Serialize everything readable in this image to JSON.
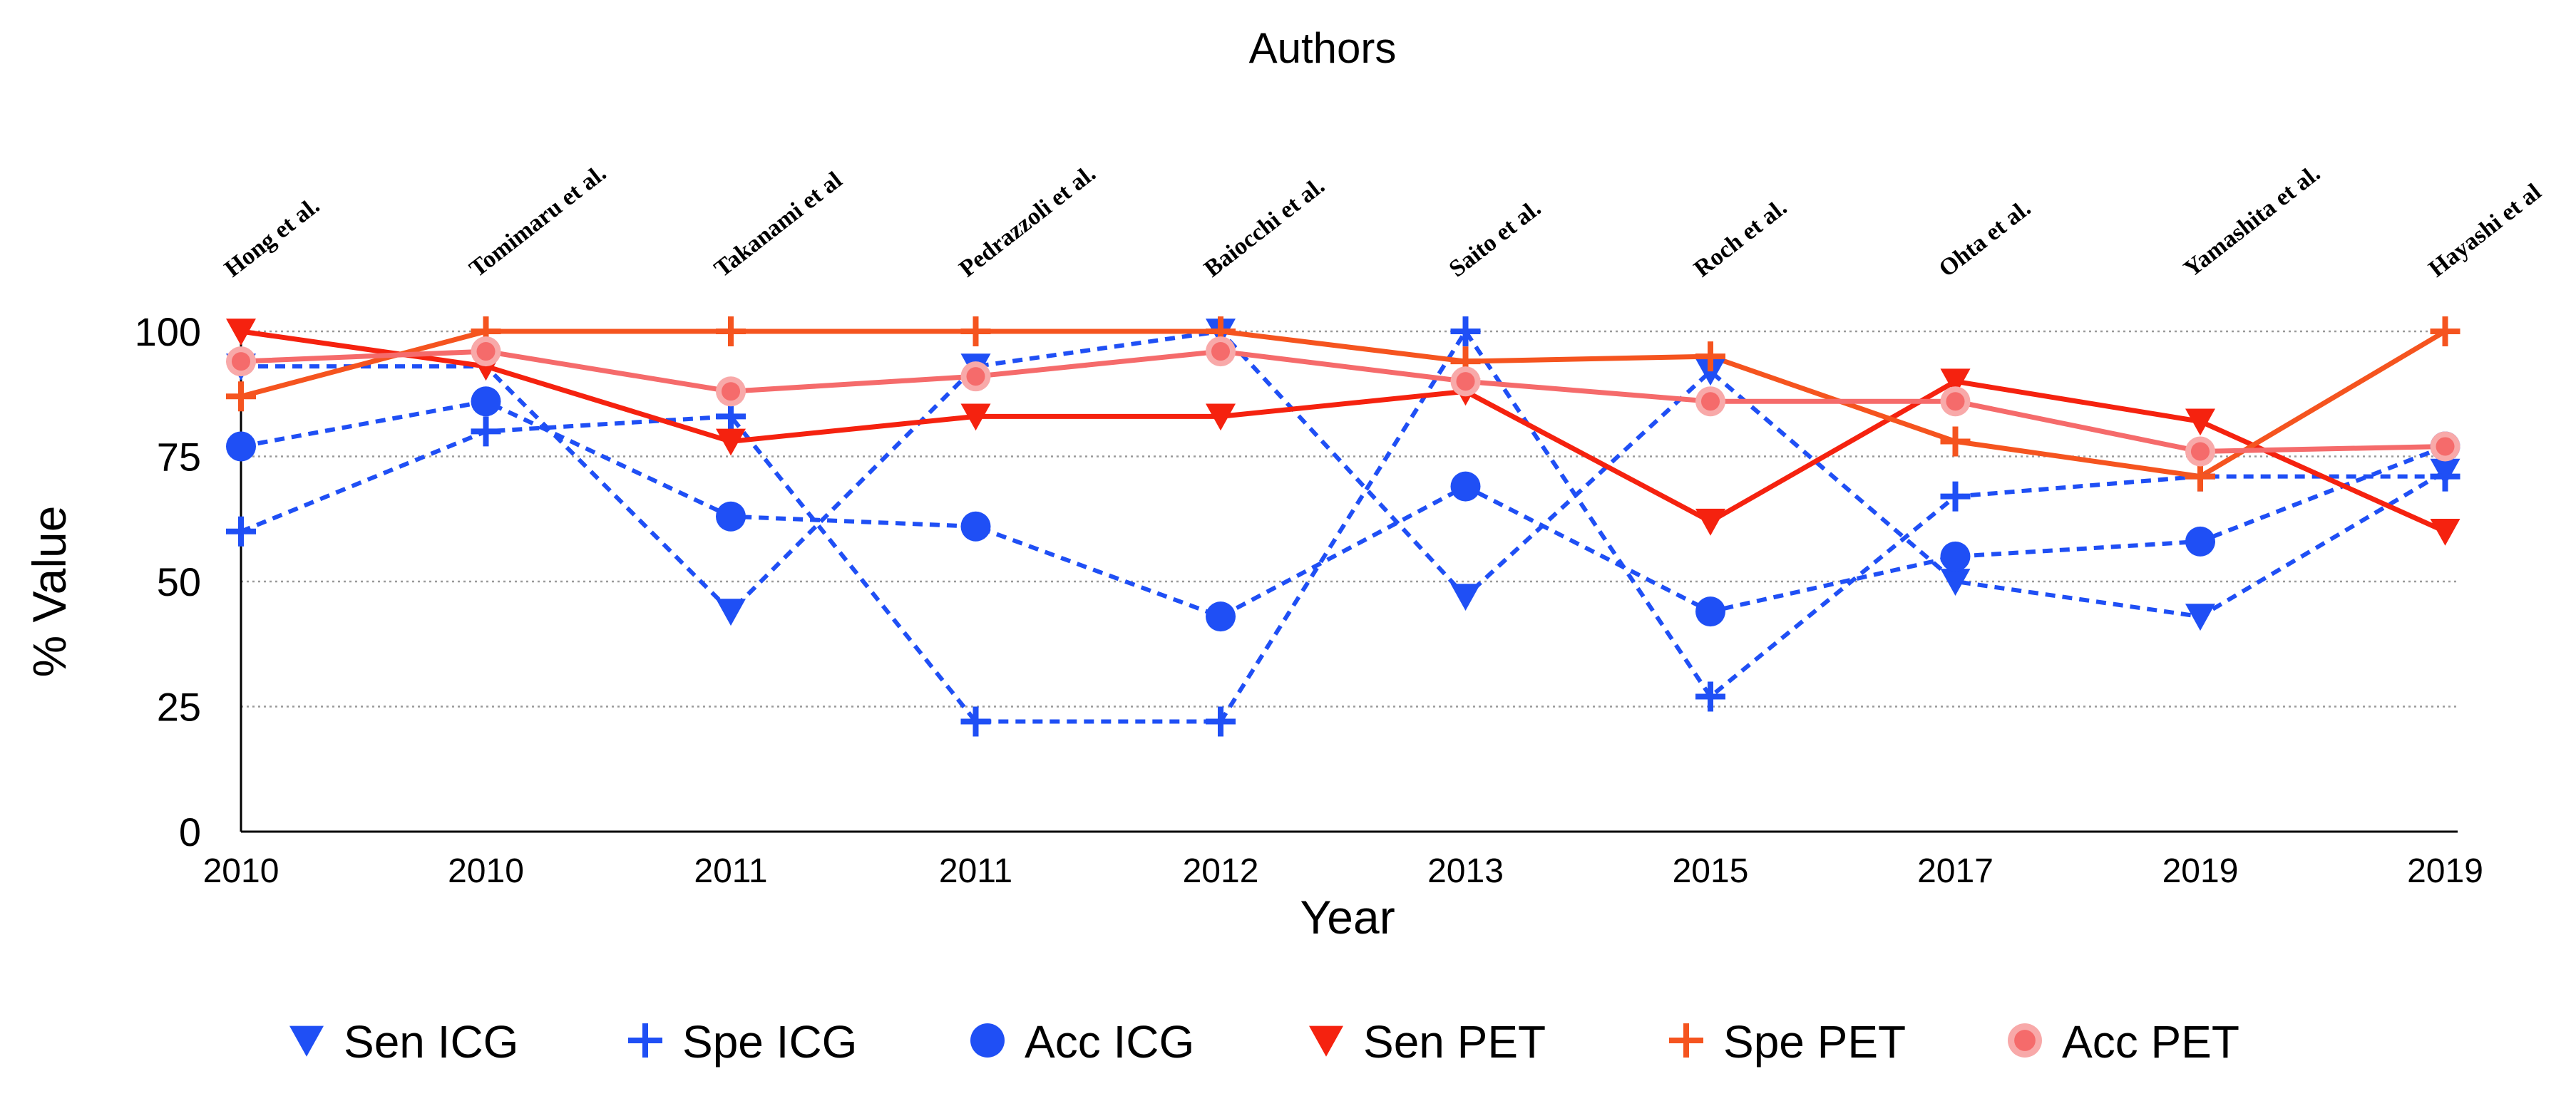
{
  "chart_data": {
    "type": "line",
    "title": "Authors",
    "xlabel": "Year",
    "ylabel": "% Value",
    "categories": [
      "2010",
      "2010",
      "2011",
      "2011",
      "2012",
      "2013",
      "2015",
      "2017",
      "2019",
      "2019"
    ],
    "authors": [
      "Hong et al.",
      "Tomimaru et al.",
      "Takanami et al",
      "Pedrazzoli et al.",
      "Baiocchi et al.",
      "Saito et al.",
      "Roch et al.",
      "Ohta et al.",
      "Yamashita et al.",
      "Hayashi et al"
    ],
    "yticks": [
      "0",
      "25",
      "50",
      "75",
      "100"
    ],
    "ylim": [
      0,
      100
    ],
    "grid": "horizontal dotted",
    "legend_position": "bottom",
    "series": [
      {
        "name": "Sen ICG",
        "color": "#1f4ff5",
        "marker": "triangle-down",
        "line": "dashed",
        "values": [
          93,
          93,
          44,
          93,
          100,
          47,
          92,
          50,
          43,
          72
        ]
      },
      {
        "name": "Spe ICG",
        "color": "#1f4ff5",
        "marker": "plus",
        "line": "dashed",
        "values": [
          60,
          80,
          83,
          22,
          22,
          100,
          27,
          67,
          71,
          71
        ]
      },
      {
        "name": "Acc ICG",
        "color": "#1f4ff5",
        "marker": "circle",
        "line": "dashed",
        "values": [
          77,
          86,
          63,
          61,
          43,
          69,
          44,
          55,
          58,
          77
        ]
      },
      {
        "name": "Sen PET",
        "color": "#f5220f",
        "marker": "triangle-down",
        "line": "solid",
        "values": [
          100,
          93,
          78,
          83,
          83,
          88,
          62,
          90,
          82,
          60
        ]
      },
      {
        "name": "Spe PET",
        "color": "#f5541f",
        "marker": "plus",
        "line": "solid",
        "values": [
          87,
          100,
          100,
          100,
          100,
          94,
          95,
          78,
          71,
          100
        ]
      },
      {
        "name": "Acc PET",
        "color": "#f56b6b",
        "marker": "ring-circle",
        "line": "solid",
        "values": [
          94,
          96,
          88,
          91,
          96,
          90,
          86,
          86,
          76,
          77
        ]
      }
    ]
  }
}
